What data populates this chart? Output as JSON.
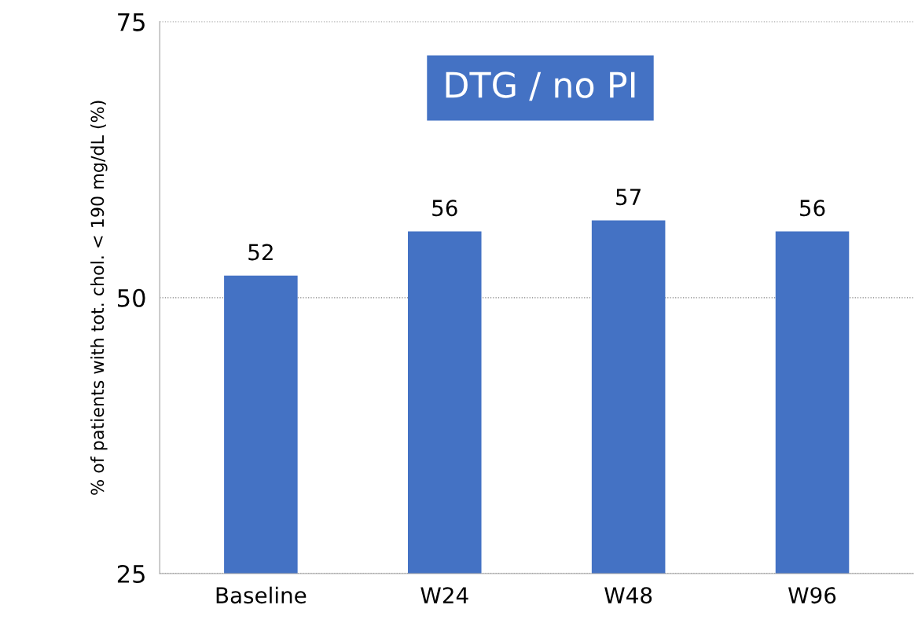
{
  "chart_data": {
    "type": "bar",
    "title": "DTG / no PI",
    "ylabel": "% of patients with tot. chol. < 190 mg/dL (%)",
    "categories": [
      "Baseline",
      "W24",
      "W48",
      "W96"
    ],
    "values": [
      52,
      56,
      57,
      56
    ],
    "color": "#4472c4",
    "ylim": [
      25,
      75
    ],
    "yticks": [
      25,
      50,
      75
    ],
    "grid": "y",
    "data_labels": true
  }
}
